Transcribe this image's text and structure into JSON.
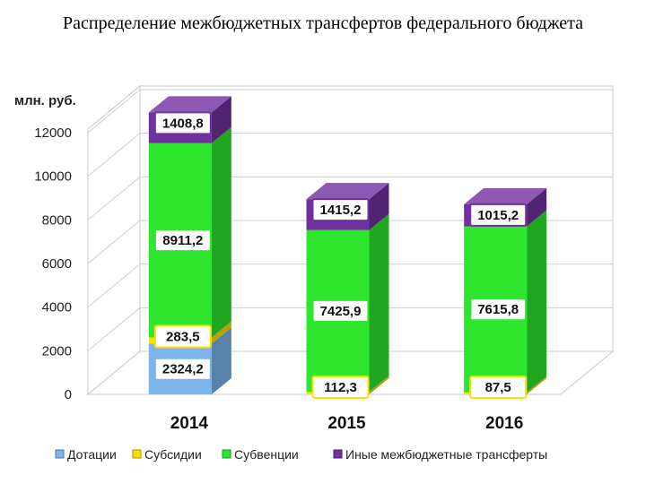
{
  "slide": {
    "title": "Распределение межбюджетных трансфертов федерального бюджета"
  },
  "chart_data": {
    "type": "bar",
    "stacked": true,
    "three_d": true,
    "unit_label": "млн. руб.",
    "categories": [
      "2014",
      "2015",
      "2016"
    ],
    "ylim": [
      0,
      12000
    ],
    "yticks": [
      0,
      2000,
      4000,
      6000,
      8000,
      10000,
      12000
    ],
    "grid": true,
    "legend_position": "bottom",
    "series": [
      {
        "name": "Дотации",
        "values": [
          2324.2,
          0,
          0
        ],
        "labels": [
          "2324,2",
          "",
          ""
        ],
        "color": "#7cb5ec"
      },
      {
        "name": "Субсидии",
        "values": [
          283.5,
          112.3,
          87.5
        ],
        "labels": [
          "283,5",
          "112,3",
          "87,5"
        ],
        "color": "#ffe000"
      },
      {
        "name": "Субвенции",
        "values": [
          8911.2,
          7425.9,
          7615.8
        ],
        "labels": [
          "8911,2",
          "7425,9",
          "7615,8"
        ],
        "color": "#2ee62e"
      },
      {
        "name": "Иные межбюджетные трансферты",
        "values": [
          1408.8,
          1415.2,
          1015.2
        ],
        "labels": [
          "1408,8",
          "1415,2",
          "1015,2"
        ],
        "color": "#7030a0"
      }
    ]
  }
}
